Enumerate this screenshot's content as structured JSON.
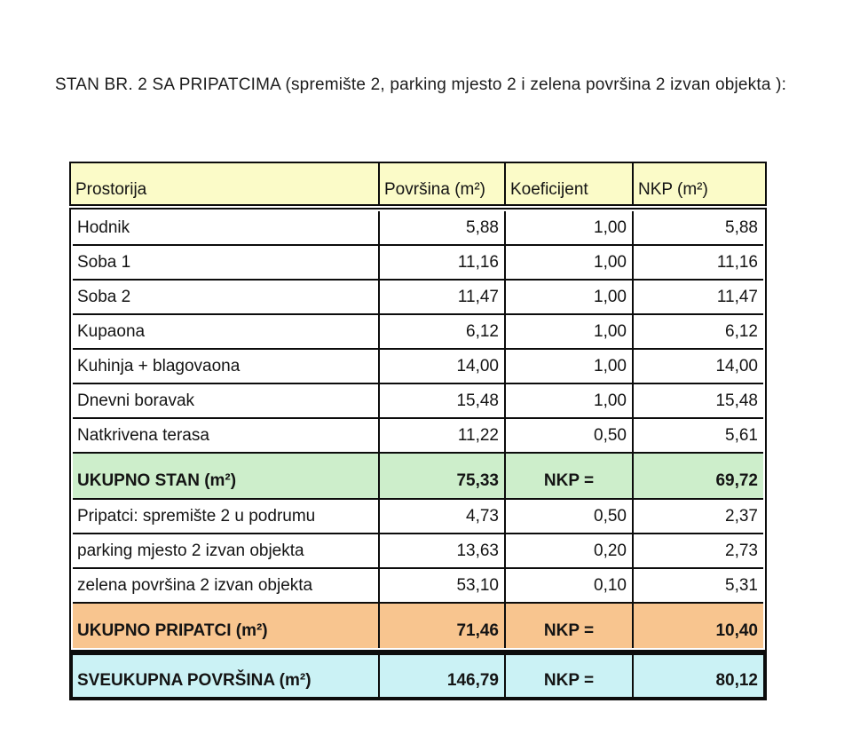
{
  "page": {
    "title": "STAN BR. 2 SA PRIPATCIMA (spremište 2, parking mjesto 2 i zelena površina 2 izvan objekta ):"
  },
  "colors": {
    "header-bg": "#fbfbc8",
    "green-bg": "#cdeecb",
    "orange-bg": "#f8c58f",
    "total-bg": "#cbf2f5",
    "border": "#0c0c0c"
  },
  "table": {
    "header": {
      "columns": [
        "Prostorija",
        "Površina (m²)",
        "Koeficijent",
        "NKP (m²)"
      ]
    },
    "body_rows": [
      {
        "name": "Hodnik",
        "area": "5,88",
        "coef": "1,00",
        "nkp": "5,88"
      },
      {
        "name": "Soba 1",
        "area": "11,16",
        "coef": "1,00",
        "nkp": "11,16"
      },
      {
        "name": "Soba 2",
        "area": "11,47",
        "coef": "1,00",
        "nkp": "11,47"
      },
      {
        "name": "Kupaona",
        "area": "6,12",
        "coef": "1,00",
        "nkp": "6,12"
      },
      {
        "name": "Kuhinja + blagovaona",
        "area": "14,00",
        "coef": "1,00",
        "nkp": "14,00"
      },
      {
        "name": "Dnevni boravak",
        "area": "15,48",
        "coef": "1,00",
        "nkp": "15,48"
      },
      {
        "name": "Natkrivena terasa",
        "area": "11,22",
        "coef": "0,50",
        "nkp": "5,61"
      },
      {
        "name": "UKUPNO STAN (m²)",
        "area": "75,33",
        "coef": "NKP =",
        "nkp": "69,72"
      },
      {
        "name": "Pripatci: spremište 2 u podrumu",
        "area": "4,73",
        "coef": "0,50",
        "nkp": "2,37"
      },
      {
        "name": "parking mjesto 2 izvan objekta",
        "area": "13,63",
        "coef": "0,20",
        "nkp": "2,73"
      },
      {
        "name": "zelena površina 2 izvan objekta",
        "area": "53,10",
        "coef": "0,10",
        "nkp": "5,31"
      },
      {
        "name": "UKUPNO PRIPATCI (m²)",
        "area": "71,46",
        "coef": "NKP =",
        "nkp": "10,40"
      }
    ],
    "total_row": {
      "name": "SVEUKUPNA POVRŠINA (m²)",
      "area": "146,79",
      "coef": "NKP =",
      "nkp": "80,12"
    }
  }
}
